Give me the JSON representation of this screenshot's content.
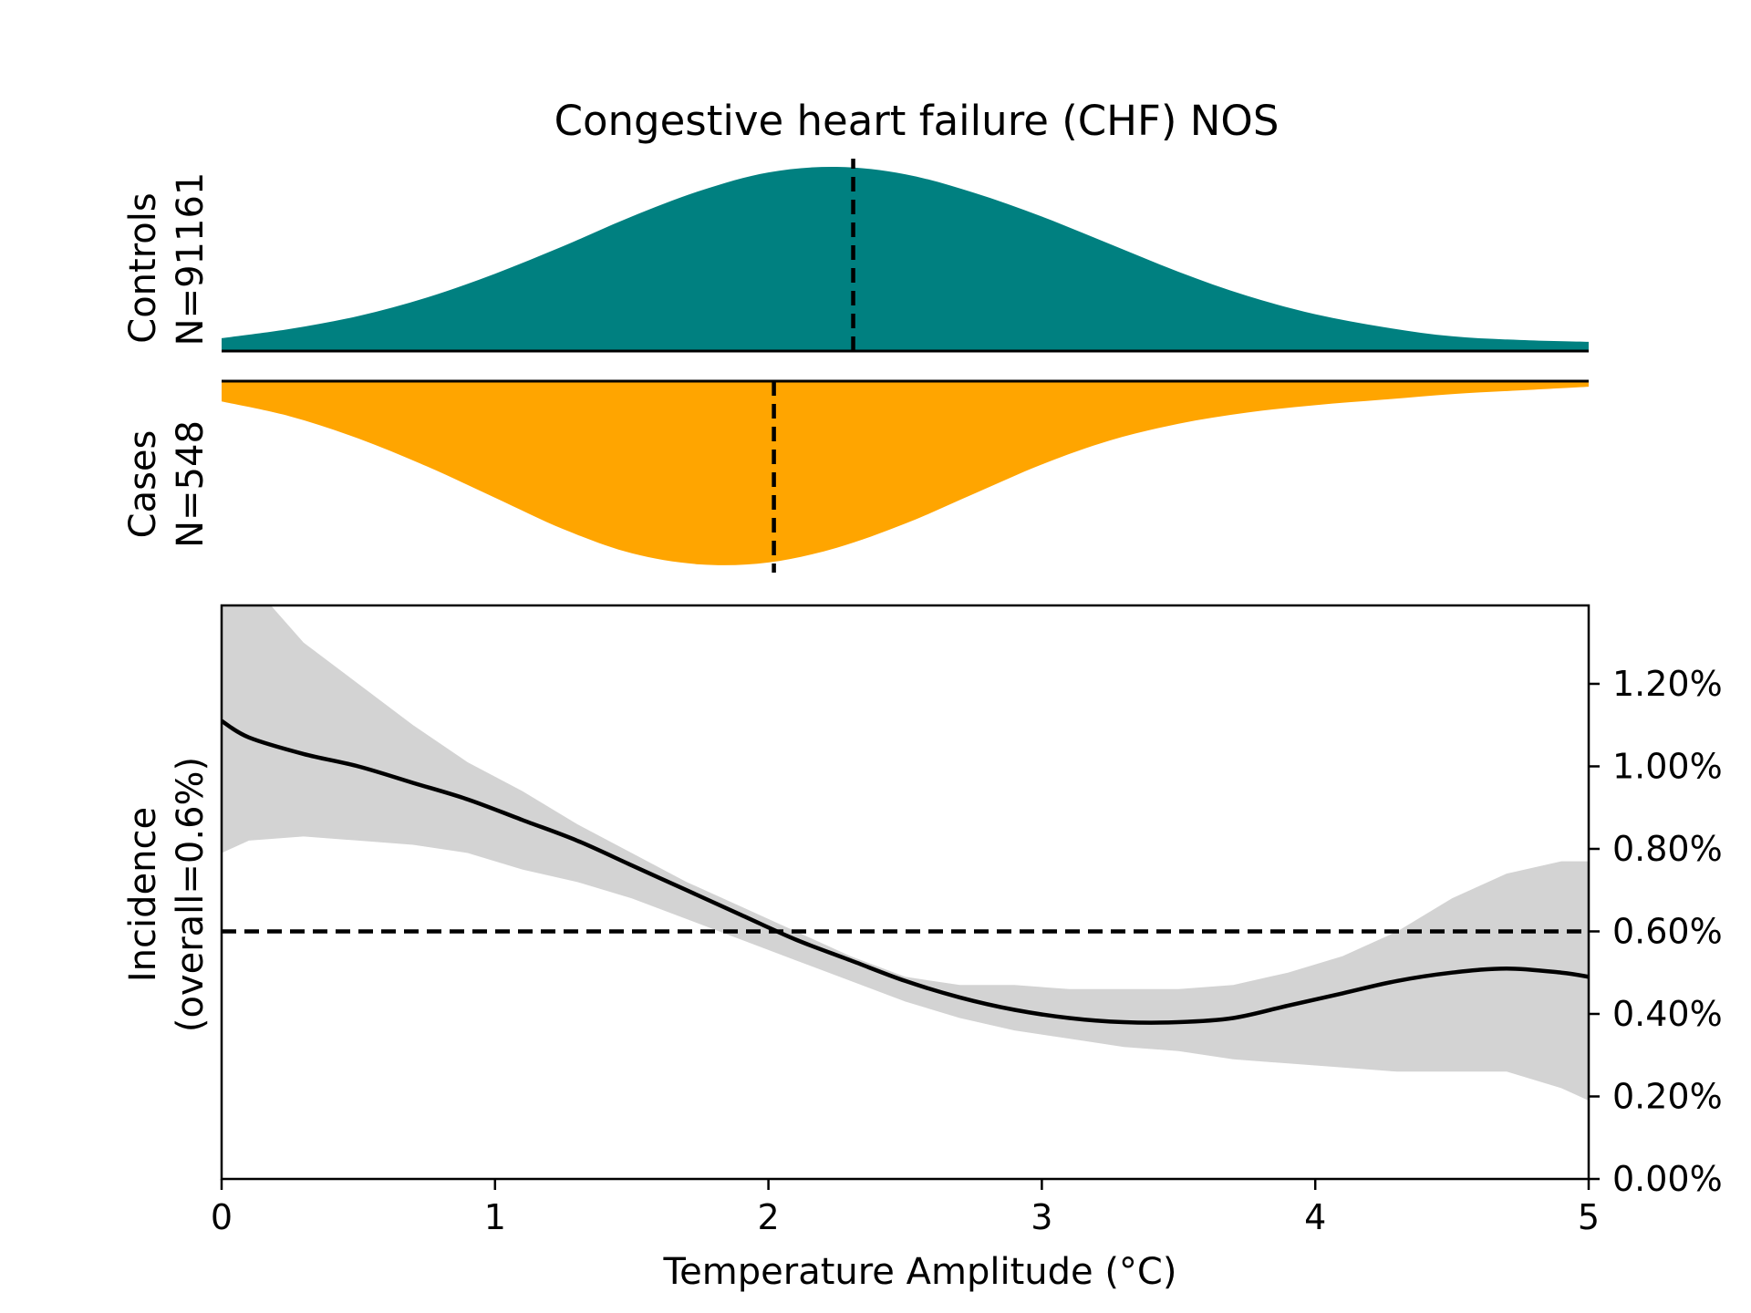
{
  "colors": {
    "controls": "#008080",
    "cases": "#FFA500",
    "ci_band": "#D3D3D3",
    "line": "#000000"
  },
  "chart_data": {
    "type": "area",
    "title": "Congestive heart failure (CHF) NOS",
    "distribution": {
      "controls": {
        "label_line1": "Controls",
        "label_line2": "N=91161",
        "median": 2.31,
        "density": {
          "x": [
            0,
            0.25,
            0.5,
            0.75,
            1.0,
            1.25,
            1.5,
            1.75,
            2.0,
            2.25,
            2.5,
            2.75,
            3.0,
            3.25,
            3.5,
            3.75,
            4.0,
            4.25,
            4.5,
            4.75,
            5.0
          ],
          "y": [
            0.07,
            0.12,
            0.19,
            0.29,
            0.42,
            0.57,
            0.73,
            0.87,
            0.97,
            1.0,
            0.96,
            0.86,
            0.73,
            0.58,
            0.43,
            0.3,
            0.2,
            0.13,
            0.08,
            0.06,
            0.05
          ]
        }
      },
      "cases": {
        "label_line1": "Cases",
        "label_line2": "N=548",
        "median": 2.02,
        "density": {
          "x": [
            0,
            0.25,
            0.5,
            0.75,
            1.0,
            1.25,
            1.5,
            1.75,
            2.0,
            2.25,
            2.5,
            2.75,
            3.0,
            3.25,
            3.5,
            3.75,
            4.0,
            4.25,
            4.5,
            4.75,
            5.0
          ],
          "y": [
            0.11,
            0.19,
            0.31,
            0.46,
            0.63,
            0.8,
            0.93,
            0.99,
            0.98,
            0.9,
            0.77,
            0.61,
            0.45,
            0.32,
            0.23,
            0.17,
            0.13,
            0.1,
            0.07,
            0.05,
            0.03
          ]
        }
      }
    },
    "incidence": {
      "ylabel_line1": "Incidence",
      "ylabel_line2": "(overall=0.6%)",
      "xlabel": "Temperature Amplitude (°C)",
      "overall": 0.6,
      "xlim": [
        0,
        5
      ],
      "ylim": [
        0,
        1.39
      ],
      "x_ticks": [
        0,
        1,
        2,
        3,
        4,
        5
      ],
      "x_tick_labels": [
        "0",
        "1",
        "2",
        "3",
        "4",
        "5"
      ],
      "y_ticks": [
        0,
        0.2,
        0.4,
        0.6,
        0.8,
        1.0,
        1.2
      ],
      "y_tick_labels": [
        "0.00%",
        "0.20%",
        "0.40%",
        "0.60%",
        "0.80%",
        "1.00%",
        "1.20%"
      ],
      "y_axis_side": "right",
      "x": [
        0,
        0.1,
        0.3,
        0.5,
        0.7,
        0.9,
        1.1,
        1.3,
        1.5,
        1.7,
        1.9,
        2.1,
        2.3,
        2.5,
        2.7,
        2.9,
        3.1,
        3.3,
        3.5,
        3.7,
        3.9,
        4.1,
        4.3,
        4.5,
        4.7,
        4.9,
        5.0
      ],
      "y": [
        1.11,
        1.07,
        1.03,
        1.0,
        0.96,
        0.92,
        0.87,
        0.82,
        0.76,
        0.7,
        0.64,
        0.58,
        0.53,
        0.48,
        0.44,
        0.41,
        0.39,
        0.38,
        0.38,
        0.39,
        0.42,
        0.45,
        0.48,
        0.5,
        0.51,
        0.5,
        0.49
      ],
      "ci_upper": [
        1.5,
        1.45,
        1.3,
        1.2,
        1.1,
        1.01,
        0.94,
        0.86,
        0.79,
        0.72,
        0.66,
        0.6,
        0.54,
        0.49,
        0.47,
        0.47,
        0.46,
        0.46,
        0.46,
        0.47,
        0.5,
        0.54,
        0.6,
        0.68,
        0.74,
        0.77,
        0.77
      ],
      "ci_lower": [
        0.79,
        0.82,
        0.83,
        0.82,
        0.81,
        0.79,
        0.75,
        0.72,
        0.68,
        0.63,
        0.58,
        0.53,
        0.48,
        0.43,
        0.39,
        0.36,
        0.34,
        0.32,
        0.31,
        0.29,
        0.28,
        0.27,
        0.26,
        0.26,
        0.26,
        0.22,
        0.19
      ]
    }
  }
}
